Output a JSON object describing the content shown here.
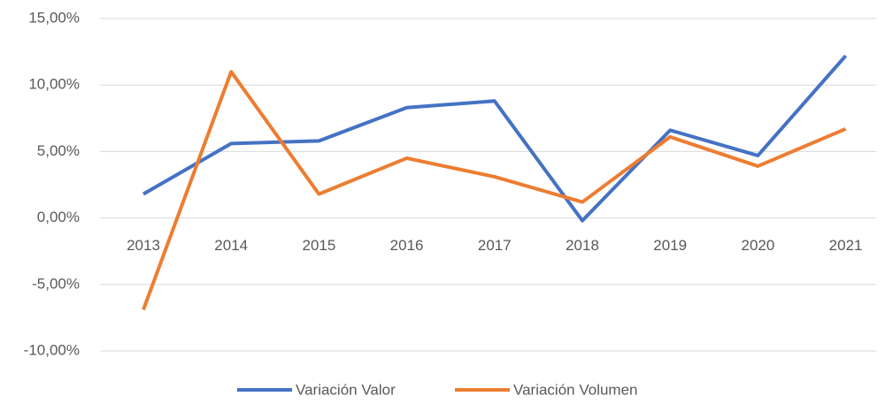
{
  "chart_data": {
    "type": "line",
    "categories": [
      "2013",
      "2014",
      "2015",
      "2016",
      "2017",
      "2018",
      "2019",
      "2020",
      "2021"
    ],
    "series": [
      {
        "name": "Variación Valor",
        "color": "#4472c4",
        "values": [
          1.8,
          5.6,
          5.8,
          8.3,
          8.8,
          -0.2,
          6.6,
          4.7,
          12.2
        ]
      },
      {
        "name": "Variación Volumen",
        "color": "#ed7d31",
        "values": [
          -6.9,
          11.0,
          1.8,
          4.5,
          3.1,
          1.2,
          6.1,
          3.9,
          6.7
        ]
      }
    ],
    "ylim": [
      -10,
      15
    ],
    "yticks": [
      {
        "value": -10,
        "label": "-10,00%"
      },
      {
        "value": -5,
        "label": "-5,00%"
      },
      {
        "value": 0,
        "label": "0,00%"
      },
      {
        "value": 5,
        "label": "5,00%"
      },
      {
        "value": 10,
        "label": "10,00%"
      },
      {
        "value": 15,
        "label": "15,00%"
      }
    ],
    "grid": true,
    "legend": "bottom"
  }
}
